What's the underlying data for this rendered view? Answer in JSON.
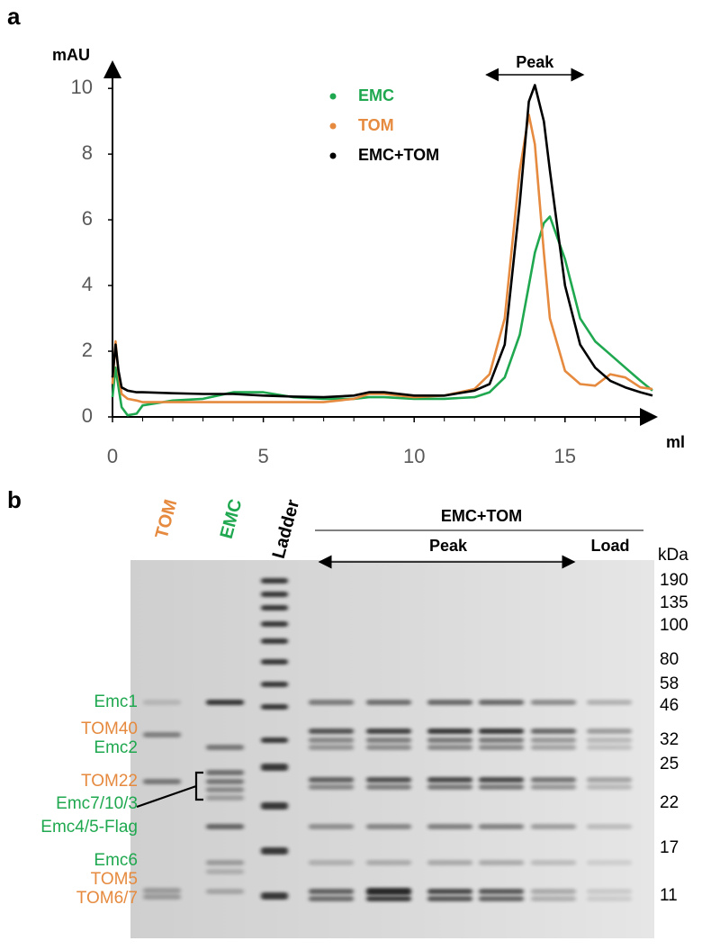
{
  "panel_a": {
    "label": "a"
  },
  "chart_data": {
    "type": "line",
    "y_label": "mAU",
    "x_label": "ml",
    "x": [
      0,
      0.1,
      0.2,
      0.3,
      0.5,
      0.8,
      1,
      2,
      3,
      4,
      5,
      6,
      7,
      8,
      8.5,
      9,
      10,
      11,
      12,
      12.5,
      13,
      13.5,
      13.8,
      14,
      14.3,
      14.5,
      15,
      15.5,
      16,
      16.5,
      17,
      17.5,
      17.9
    ],
    "series": [
      {
        "name": "EMC",
        "color": "#1fa84f",
        "values": [
          0.6,
          1.5,
          0.9,
          0.3,
          0.05,
          0.1,
          0.35,
          0.5,
          0.55,
          0.75,
          0.75,
          0.6,
          0.55,
          0.55,
          0.6,
          0.6,
          0.55,
          0.55,
          0.6,
          0.75,
          1.2,
          2.5,
          4.0,
          5.0,
          5.9,
          6.1,
          4.8,
          3.0,
          2.3,
          1.9,
          1.5,
          1.1,
          0.8
        ]
      },
      {
        "name": "TOM",
        "color": "#e58a3e",
        "values": [
          1.0,
          2.3,
          1.3,
          0.7,
          0.55,
          0.5,
          0.45,
          0.45,
          0.45,
          0.45,
          0.45,
          0.45,
          0.45,
          0.55,
          0.7,
          0.7,
          0.6,
          0.65,
          0.85,
          1.3,
          3.0,
          7.5,
          9.2,
          8.3,
          5.0,
          3.0,
          1.4,
          1.0,
          0.95,
          1.3,
          1.2,
          0.9,
          0.85
        ]
      },
      {
        "name": "EMC+TOM",
        "color": "#000000",
        "values": [
          1.2,
          2.2,
          1.4,
          0.9,
          0.8,
          0.75,
          0.75,
          0.72,
          0.7,
          0.7,
          0.65,
          0.62,
          0.6,
          0.65,
          0.75,
          0.75,
          0.65,
          0.65,
          0.8,
          1.0,
          2.2,
          6.5,
          9.6,
          10.1,
          9.0,
          7.5,
          4.0,
          2.2,
          1.5,
          1.1,
          0.9,
          0.75,
          0.65
        ]
      }
    ],
    "xlim": [
      0,
      17.9
    ],
    "ylim": [
      0,
      10.8
    ],
    "xticks": [
      0,
      5,
      10,
      15
    ],
    "yticks": [
      0,
      2,
      4,
      6,
      8,
      10
    ],
    "annotation": {
      "text": "Peak",
      "x_range": [
        12.4,
        15.6
      ]
    }
  },
  "gel": {
    "label": "b",
    "lanes": [
      {
        "label": "TOM",
        "color": "#e58a3e"
      },
      {
        "label": "EMC",
        "color": "#1fa84f"
      },
      {
        "label": "Ladder",
        "color": "#000000"
      }
    ],
    "group_label": "EMC+TOM",
    "peak_label": "Peak",
    "load_label": "Load",
    "unit": "kDa",
    "markers": [
      190,
      135,
      100,
      80,
      58,
      46,
      32,
      25,
      22,
      17,
      11
    ],
    "band_labels": [
      {
        "text": "Emc1",
        "color": "#1fa84f"
      },
      {
        "text": "TOM40",
        "color": "#e58a3e"
      },
      {
        "text": "Emc2",
        "color": "#1fa84f"
      },
      {
        "text": "TOM22",
        "color": "#e58a3e"
      },
      {
        "text": "Emc7/10/3",
        "color": "#1fa84f"
      },
      {
        "text": "Emc4/5-Flag",
        "color": "#1fa84f"
      },
      {
        "text": "Emc6",
        "color": "#1fa84f"
      },
      {
        "text": "TOM5",
        "color": "#e58a3e"
      },
      {
        "text": "TOM6/7",
        "color": "#e58a3e"
      }
    ]
  }
}
